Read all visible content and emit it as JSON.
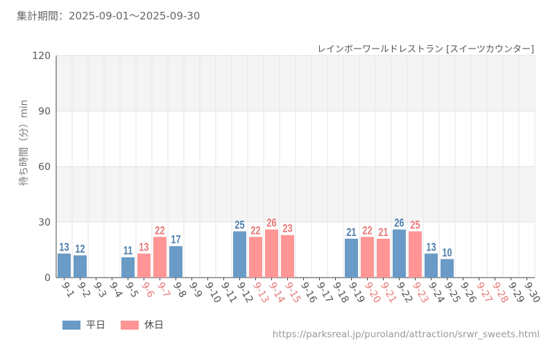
{
  "header": {
    "period_label": "集計期間：",
    "period_range": "2025-09-01～2025-09-30"
  },
  "source_url": "https://parksreal.jp/puroland/attraction/srwr_sweets.html",
  "colors": {
    "weekday": "#6a9ac6",
    "holiday": "#ff9595",
    "grid_band": "#f4f4f4"
  },
  "chart_data": {
    "type": "bar",
    "title": "レインボーワールドレストラン [スイーツカウンター]",
    "ylabel": "待ち時間（分）min",
    "xlabel": "",
    "ylim": [
      0,
      120
    ],
    "yticks": [
      0,
      30,
      60,
      90,
      120
    ],
    "categories": [
      "9-1",
      "9-2",
      "9-3",
      "9-4",
      "9-5",
      "9-6",
      "9-7",
      "9-8",
      "9-9",
      "9-10",
      "9-11",
      "9-12",
      "9-13",
      "9-14",
      "9-15",
      "9-16",
      "9-17",
      "9-18",
      "9-19",
      "9-20",
      "9-21",
      "9-22",
      "9-23",
      "9-24",
      "9-25",
      "9-26",
      "9-27",
      "9-28",
      "9-29",
      "9-30"
    ],
    "holiday": [
      false,
      false,
      false,
      false,
      false,
      true,
      true,
      false,
      false,
      false,
      false,
      false,
      true,
      true,
      true,
      false,
      false,
      false,
      false,
      true,
      true,
      false,
      true,
      false,
      false,
      false,
      true,
      true,
      false,
      false
    ],
    "values": [
      13,
      12,
      null,
      null,
      11,
      13,
      22,
      17,
      null,
      null,
      null,
      25,
      22,
      26,
      23,
      null,
      null,
      null,
      21,
      22,
      21,
      26,
      25,
      13,
      10,
      null,
      null,
      null,
      null,
      null
    ],
    "series_names": [
      "平日",
      "休日"
    ]
  }
}
